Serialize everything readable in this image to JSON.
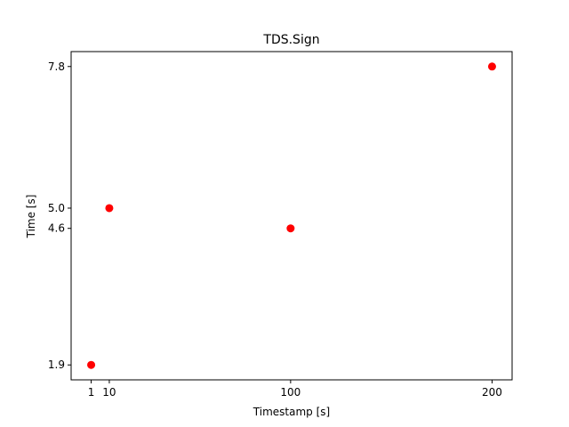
{
  "chart_data": {
    "type": "scatter",
    "title": "TDS.Sign",
    "xlabel": "Timestamp [s]",
    "ylabel": "Time [s]",
    "x": [
      1,
      10,
      100,
      200
    ],
    "y": [
      1.9,
      5.0,
      4.6,
      7.8
    ],
    "xticks": [
      1,
      10,
      100,
      200
    ],
    "xtick_labels": [
      "1",
      "10",
      "100",
      "200"
    ],
    "yticks": [
      1.9,
      4.6,
      5.0,
      7.8
    ],
    "ytick_labels": [
      "1.9",
      "4.6",
      "5.0",
      "7.8"
    ],
    "xlim": [
      -8.95,
      209.95
    ],
    "ylim": [
      1.605,
      8.095
    ],
    "grid": false,
    "marker_color": "#ff0000"
  }
}
